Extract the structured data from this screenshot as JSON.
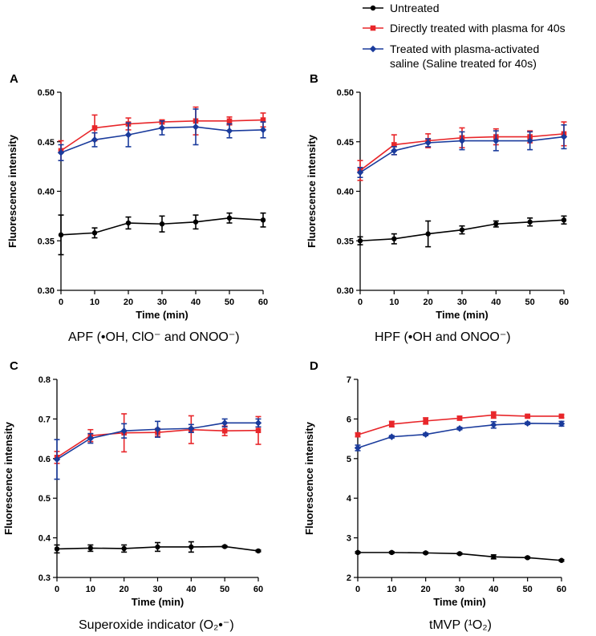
{
  "legend": [
    {
      "name": "Untreated",
      "color": "#000000",
      "marker": "circle"
    },
    {
      "name": "Directly treated with plasma for 40s",
      "color": "#e8262a",
      "marker": "square"
    },
    {
      "name": "Treated with plasma-activated",
      "name_line2": "saline (Saline treated for 40s)",
      "color": "#1a3b9c",
      "marker": "diamond"
    }
  ],
  "chart_data": [
    {
      "type": "line",
      "panel": "A",
      "caption": "APF (•OH, ClO⁻ and ONOO⁻)",
      "xlabel": "Time (min)",
      "ylabel": "Fluorescence intensity",
      "x": [
        0,
        10,
        20,
        30,
        40,
        50,
        60
      ],
      "xlim": [
        0,
        60
      ],
      "xticks": [
        "0",
        "10",
        "20",
        "30",
        "40",
        "50",
        "60"
      ],
      "ylim": [
        0.3,
        0.5
      ],
      "yticks": [
        "0.30",
        "0.35",
        "0.40",
        "0.45",
        "0.50"
      ],
      "ytick_values": [
        0.3,
        0.35,
        0.4,
        0.45,
        0.5
      ],
      "series": [
        {
          "name": "Untreated",
          "values": [
            0.356,
            0.358,
            0.368,
            0.367,
            0.369,
            0.373,
            0.371
          ],
          "err": [
            0.02,
            0.005,
            0.006,
            0.008,
            0.007,
            0.005,
            0.007
          ]
        },
        {
          "name": "Directly treated with plasma for 40s",
          "values": [
            0.441,
            0.464,
            0.468,
            0.47,
            0.471,
            0.471,
            0.472
          ],
          "err": [
            0.01,
            0.013,
            0.006,
            0.002,
            0.014,
            0.004,
            0.007
          ]
        },
        {
          "name": "Treated with plasma-activated saline (Saline treated for 40s)",
          "values": [
            0.439,
            0.452,
            0.457,
            0.464,
            0.465,
            0.461,
            0.462
          ],
          "err": [
            0.008,
            0.007,
            0.012,
            0.007,
            0.018,
            0.007,
            0.008
          ]
        }
      ]
    },
    {
      "type": "line",
      "panel": "B",
      "caption": "HPF (•OH and ONOO⁻)",
      "xlabel": "Time (min)",
      "ylabel": "Fluorescence intensity",
      "x": [
        0,
        10,
        20,
        30,
        40,
        50,
        60
      ],
      "xlim": [
        0,
        60
      ],
      "xticks": [
        "0",
        "10",
        "20",
        "30",
        "40",
        "50",
        "60"
      ],
      "ylim": [
        0.3,
        0.5
      ],
      "yticks": [
        "0.30",
        "0.35",
        "0.40",
        "0.45",
        "0.50"
      ],
      "ytick_values": [
        0.3,
        0.35,
        0.4,
        0.45,
        0.5
      ],
      "series": [
        {
          "name": "Untreated",
          "values": [
            0.35,
            0.352,
            0.357,
            0.361,
            0.367,
            0.369,
            0.371
          ],
          "err": [
            0.004,
            0.005,
            0.013,
            0.004,
            0.003,
            0.004,
            0.004
          ]
        },
        {
          "name": "Directly treated with plasma for 40s",
          "values": [
            0.421,
            0.447,
            0.451,
            0.454,
            0.455,
            0.455,
            0.458
          ],
          "err": [
            0.01,
            0.01,
            0.007,
            0.01,
            0.008,
            0.006,
            0.012
          ]
        },
        {
          "name": "Treated with plasma-activated saline (Saline treated for 40s)",
          "values": [
            0.419,
            0.441,
            0.449,
            0.451,
            0.451,
            0.451,
            0.455
          ],
          "err": [
            0.005,
            0.004,
            0.004,
            0.009,
            0.01,
            0.009,
            0.012
          ]
        }
      ]
    },
    {
      "type": "line",
      "panel": "C",
      "caption": "Superoxide indicator (O₂•⁻)",
      "xlabel": "Time (min)",
      "ylabel": "Fluorescence intensity",
      "x": [
        0,
        10,
        20,
        30,
        40,
        50,
        60
      ],
      "xlim": [
        0,
        60
      ],
      "xticks": [
        "0",
        "10",
        "20",
        "30",
        "40",
        "50",
        "60"
      ],
      "ylim": [
        0.3,
        0.8
      ],
      "yticks": [
        "0.3",
        "0.4",
        "0.5",
        "0.6",
        "0.7",
        "0.8"
      ],
      "ytick_values": [
        0.3,
        0.4,
        0.5,
        0.6,
        0.7,
        0.8
      ],
      "series": [
        {
          "name": "Untreated",
          "values": [
            0.372,
            0.374,
            0.373,
            0.377,
            0.377,
            0.378,
            0.367
          ],
          "err": [
            0.01,
            0.008,
            0.009,
            0.011,
            0.013,
            0.002,
            0.002
          ]
        },
        {
          "name": "Directly treated with plasma for 40s",
          "values": [
            0.603,
            0.658,
            0.665,
            0.666,
            0.673,
            0.67,
            0.671
          ],
          "err": [
            0.015,
            0.015,
            0.048,
            0.01,
            0.035,
            0.012,
            0.035
          ]
        },
        {
          "name": "Treated with plasma-activated saline (Saline treated for 40s)",
          "values": [
            0.598,
            0.651,
            0.67,
            0.674,
            0.676,
            0.69,
            0.69
          ],
          "err": [
            0.05,
            0.012,
            0.018,
            0.02,
            0.01,
            0.01,
            0.01
          ]
        }
      ]
    },
    {
      "type": "line",
      "panel": "D",
      "caption": "tMVP (¹O₂)",
      "xlabel": "Time (min)",
      "ylabel": "Fluorescence intensity",
      "x": [
        0,
        10,
        20,
        30,
        40,
        50,
        60
      ],
      "xlim": [
        0,
        60
      ],
      "xticks": [
        "0",
        "10",
        "20",
        "30",
        "40",
        "50",
        "60"
      ],
      "ylim": [
        2,
        7
      ],
      "yticks": [
        "2",
        "3",
        "4",
        "5",
        "6",
        "7"
      ],
      "ytick_values": [
        2,
        3,
        4,
        5,
        6,
        7
      ],
      "series": [
        {
          "name": "Untreated",
          "values": [
            2.63,
            2.63,
            2.62,
            2.6,
            2.52,
            2.5,
            2.43
          ],
          "err": [
            0.02,
            0.02,
            0.02,
            0.02,
            0.05,
            0.02,
            0.02
          ]
        },
        {
          "name": "Directly treated with plasma for 40s",
          "values": [
            5.6,
            5.87,
            5.95,
            6.02,
            6.1,
            6.07,
            6.07
          ],
          "err": [
            0.05,
            0.07,
            0.08,
            0.05,
            0.08,
            0.04,
            0.04
          ]
        },
        {
          "name": "Treated with plasma-activated saline (Saline treated for 40s)",
          "values": [
            5.27,
            5.55,
            5.61,
            5.76,
            5.85,
            5.89,
            5.88
          ],
          "err": [
            0.07,
            0.03,
            0.03,
            0.03,
            0.08,
            0.03,
            0.06
          ]
        }
      ]
    }
  ]
}
